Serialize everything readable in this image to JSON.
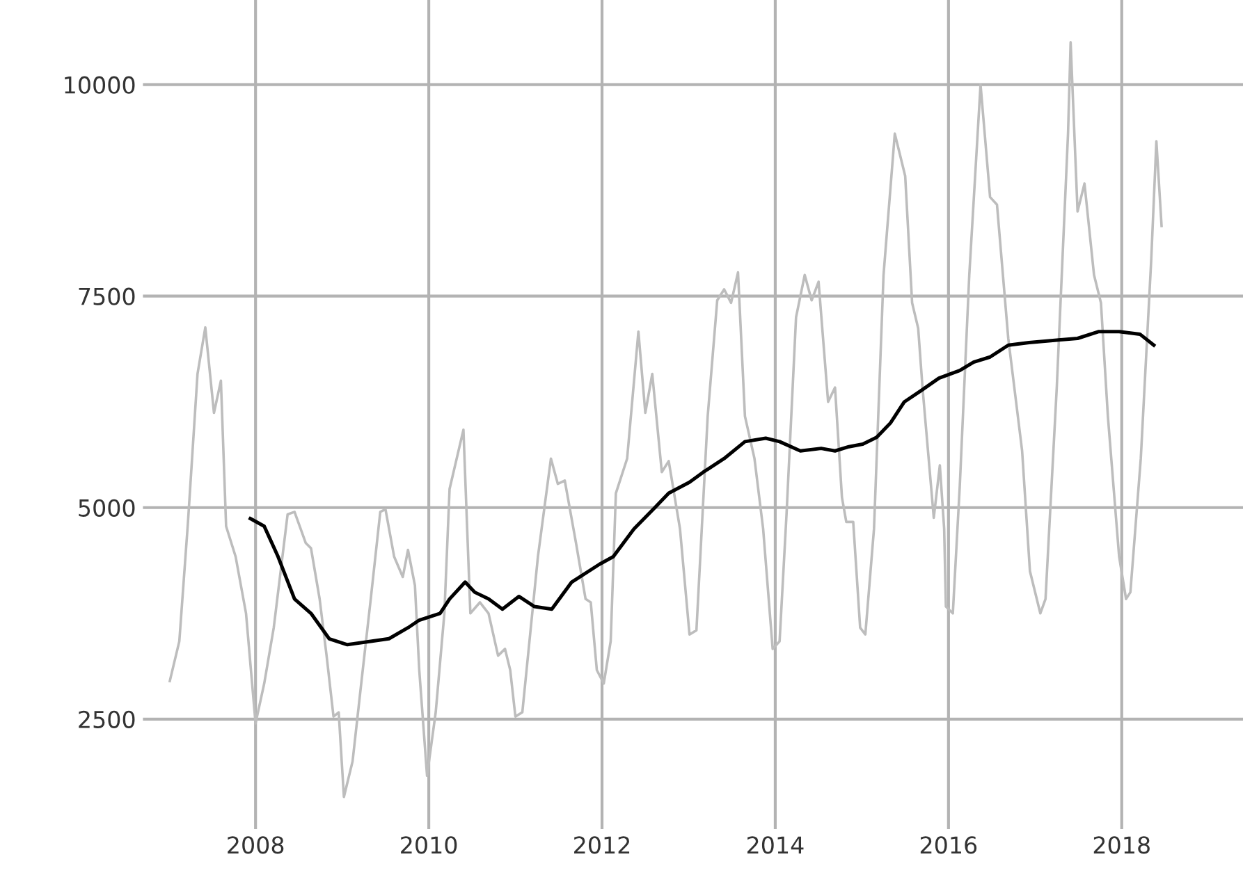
{
  "chart_data": {
    "type": "line",
    "xlim": [
      2006.7,
      2019.4
    ],
    "ylim": [
      1200,
      11000
    ],
    "xticks": [
      2008,
      2010,
      2012,
      2014,
      2016,
      2018
    ],
    "yticks": [
      2500,
      5000,
      7500,
      10000
    ],
    "grid": true,
    "marker": "none",
    "line_style": "solid",
    "series": [
      {
        "color": "#bdbdbd",
        "x": [
          2007.01,
          2007.12,
          2007.22,
          2007.33,
          2007.42,
          2007.52,
          2007.6,
          2007.66,
          2007.77,
          2007.89,
          2008.0,
          2008.1,
          2008.21,
          2008.37,
          2008.45,
          2008.58,
          2008.64,
          2008.74,
          2008.82,
          2008.9,
          2008.96,
          2009.02,
          2009.12,
          2009.22,
          2009.33,
          2009.44,
          2009.5,
          2009.6,
          2009.7,
          2009.76,
          2009.84,
          2009.89,
          2009.98,
          2010.08,
          2010.18,
          2010.24,
          2010.4,
          2010.48,
          2010.59,
          2010.69,
          2010.8,
          2010.88,
          2010.94,
          2011.0,
          2011.08,
          2011.17,
          2011.26,
          2011.41,
          2011.49,
          2011.57,
          2011.7,
          2011.81,
          2011.87,
          2011.94,
          2012.02,
          2012.1,
          2012.16,
          2012.29,
          2012.42,
          2012.5,
          2012.58,
          2012.69,
          2012.77,
          2012.9,
          2013.01,
          2013.09,
          2013.22,
          2013.33,
          2013.41,
          2013.49,
          2013.57,
          2013.65,
          2013.76,
          2013.86,
          2013.97,
          2014.05,
          2014.13,
          2014.24,
          2014.34,
          2014.42,
          2014.5,
          2014.61,
          2014.69,
          2014.77,
          2014.82,
          2014.9,
          2014.98,
          2015.04,
          2015.14,
          2015.25,
          2015.38,
          2015.5,
          2015.58,
          2015.65,
          2015.7,
          2015.83,
          2015.9,
          2015.95,
          2015.97,
          2016.05,
          2016.13,
          2016.24,
          2016.37,
          2016.48,
          2016.56,
          2016.69,
          2016.82,
          2016.85,
          2016.94,
          2017.06,
          2017.12,
          2017.25,
          2017.38,
          2017.41,
          2017.49,
          2017.57,
          2017.68,
          2017.76,
          2017.84,
          2017.97,
          2018.05,
          2018.1,
          2018.22,
          2018.34,
          2018.4,
          2018.46
        ],
        "values": [
          2950,
          3420,
          4830,
          6580,
          7130,
          6120,
          6500,
          4780,
          4420,
          3750,
          2450,
          2920,
          3580,
          4920,
          4950,
          4580,
          4520,
          3920,
          3250,
          2530,
          2580,
          1580,
          2000,
          2920,
          3920,
          4950,
          4980,
          4420,
          4180,
          4500,
          4080,
          3080,
          1830,
          2580,
          3750,
          5220,
          5920,
          3750,
          3880,
          3750,
          3250,
          3330,
          3080,
          2530,
          2580,
          3500,
          4420,
          5580,
          5280,
          5320,
          4580,
          3920,
          3880,
          3080,
          2920,
          3420,
          5170,
          5580,
          7080,
          6120,
          6580,
          5420,
          5550,
          4750,
          3500,
          3550,
          6080,
          7450,
          7580,
          7420,
          7780,
          6080,
          5580,
          4750,
          3330,
          3420,
          4920,
          7250,
          7750,
          7450,
          7670,
          6250,
          6420,
          5120,
          4830,
          4830,
          3580,
          3500,
          4750,
          7750,
          9420,
          8920,
          7420,
          7120,
          6420,
          4880,
          5500,
          4750,
          3830,
          3750,
          5250,
          7750,
          10000,
          8670,
          8580,
          7000,
          5920,
          5670,
          4250,
          3750,
          3920,
          6420,
          9420,
          10500,
          8500,
          8830,
          7750,
          7420,
          6080,
          4420,
          3920,
          4000,
          5580,
          7920,
          9330,
          8330
        ]
      },
      {
        "color": "#000000",
        "x": [
          2007.94,
          2008.1,
          2008.26,
          2008.45,
          2008.64,
          2008.85,
          2009.06,
          2009.33,
          2009.54,
          2009.76,
          2009.89,
          2010.13,
          2010.24,
          2010.42,
          2010.53,
          2010.69,
          2010.85,
          2011.04,
          2011.22,
          2011.42,
          2011.65,
          2011.97,
          2012.13,
          2012.37,
          2012.61,
          2012.77,
          2013.01,
          2013.17,
          2013.41,
          2013.65,
          2013.89,
          2014.05,
          2014.29,
          2014.53,
          2014.69,
          2014.85,
          2015.01,
          2015.17,
          2015.33,
          2015.49,
          2015.68,
          2015.89,
          2016.13,
          2016.29,
          2016.48,
          2016.69,
          2016.93,
          2017.25,
          2017.49,
          2017.73,
          2017.97,
          2018.21,
          2018.37
        ],
        "values": [
          4870,
          4780,
          4420,
          3920,
          3750,
          3450,
          3380,
          3420,
          3450,
          3580,
          3670,
          3750,
          3920,
          4120,
          4000,
          3920,
          3800,
          3950,
          3830,
          3800,
          4120,
          4330,
          4420,
          4750,
          5000,
          5170,
          5300,
          5420,
          5580,
          5780,
          5820,
          5780,
          5670,
          5700,
          5670,
          5720,
          5750,
          5830,
          6000,
          6250,
          6380,
          6530,
          6620,
          6720,
          6780,
          6920,
          6950,
          6980,
          7000,
          7080,
          7080,
          7050,
          6920
        ]
      }
    ]
  }
}
